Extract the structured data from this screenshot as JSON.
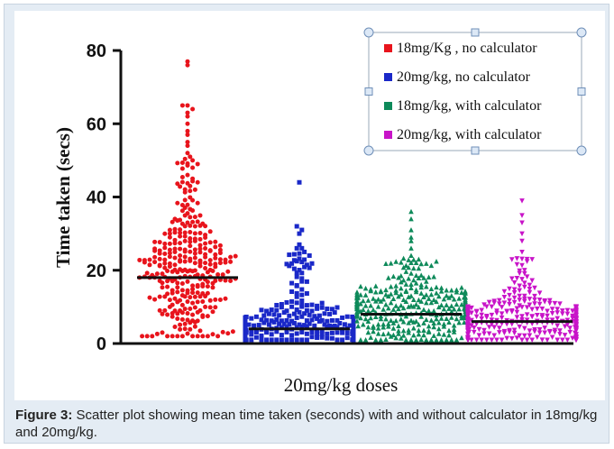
{
  "caption": {
    "label": "Figure 3:",
    "text": " Scatter plot showing mean time taken (seconds) with and without calculator in 18mg/kg and 20mg/kg."
  },
  "chart_data": {
    "type": "scatter",
    "title": "",
    "xlabel": "20mg/kg doses",
    "ylabel": "Time taken (secs)",
    "ylim": [
      0,
      80
    ],
    "yticks": [
      0,
      20,
      40,
      60,
      80
    ],
    "grid": false,
    "legend_position": "top-right",
    "series": [
      {
        "name": "18mg/Kg , no calculator",
        "color": "#e8141c",
        "marker": "circle",
        "mean": 18,
        "max": 77,
        "min": 2,
        "n": 330,
        "highlights": [
          77,
          76,
          65,
          65,
          64,
          63,
          62,
          60,
          58,
          57,
          55,
          54,
          52,
          51,
          50,
          49,
          48,
          46,
          45,
          44,
          43,
          42
        ]
      },
      {
        "name": "20mg/kg, no calculator",
        "color": "#1a28c8",
        "marker": "square",
        "mean": 4,
        "max": 44,
        "min": 1,
        "n": 330,
        "highlights": [
          44,
          32,
          31,
          30,
          27,
          26,
          26,
          25,
          24
        ]
      },
      {
        "name": "18mg/kg, with calculator",
        "color": "#0e8a5a",
        "marker": "triangle-up",
        "mean": 8,
        "max": 36,
        "min": 1,
        "n": 330,
        "highlights": [
          36,
          34,
          31,
          29,
          28,
          26,
          24,
          23
        ]
      },
      {
        "name": "20mg/kg, with calculator",
        "color": "#c814c8",
        "marker": "triangle-down",
        "mean": 6,
        "max": 39,
        "min": 1,
        "n": 330,
        "highlights": [
          39,
          35,
          33,
          30,
          28,
          25,
          23
        ]
      }
    ]
  }
}
